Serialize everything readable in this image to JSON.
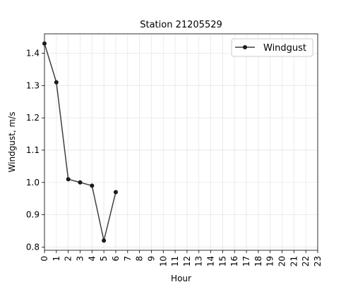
{
  "chart_data": {
    "type": "line",
    "title": "Station 21205529",
    "xlabel": "Hour",
    "ylabel": "Windgust, m/s",
    "x_categories": [
      "0",
      "1",
      "2",
      "3",
      "4",
      "5",
      "6",
      "7",
      "8",
      "9",
      "10",
      "11",
      "12",
      "13",
      "14",
      "15",
      "16",
      "17",
      "18",
      "19",
      "20",
      "21",
      "22",
      "23"
    ],
    "xlim": [
      0,
      23
    ],
    "ylim": [
      0.79,
      1.46
    ],
    "y_ticks": [
      0.8,
      0.9,
      1.0,
      1.1,
      1.2,
      1.3,
      1.4
    ],
    "y_tick_labels": [
      "0.8",
      "0.9",
      "1.0",
      "1.1",
      "1.2",
      "1.3",
      "1.4"
    ],
    "grid": true,
    "legend_position": "top-right",
    "series": [
      {
        "name": "Windgust",
        "color": "#404040",
        "x": [
          0,
          1,
          2,
          3,
          4,
          5,
          6
        ],
        "y": [
          1.43,
          1.31,
          1.01,
          1.0,
          0.99,
          0.82,
          0.97
        ]
      }
    ]
  }
}
